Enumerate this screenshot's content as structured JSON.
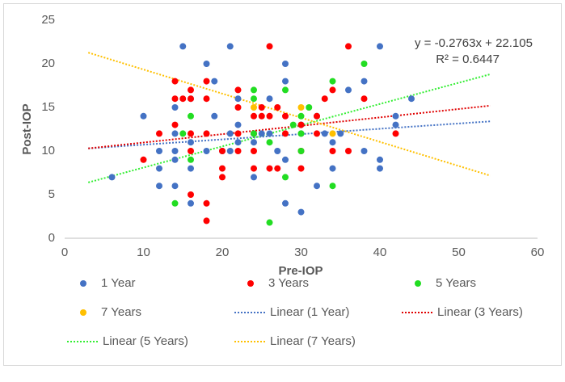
{
  "chart_data": {
    "type": "scatter",
    "xlabel": "Pre-IOP",
    "ylabel": "Post-IOP",
    "xlim": [
      0,
      60
    ],
    "xticks": [
      0,
      10,
      20,
      30,
      40,
      50,
      60
    ],
    "ylim": [
      0,
      25
    ],
    "yticks": [
      0,
      5,
      10,
      15,
      20,
      25
    ],
    "grid": false,
    "annotations": [
      "y = -0.2763x + 22.105",
      "R² = 0.6447"
    ],
    "series": [
      {
        "name": "1 Year",
        "color": "#4472c4",
        "x": [
          6,
          10,
          12,
          12,
          12,
          14,
          14,
          14,
          14,
          14,
          15,
          16,
          16,
          16,
          16,
          18,
          18,
          19,
          19,
          20,
          21,
          21,
          21,
          22,
          22,
          22,
          24,
          24,
          24,
          25,
          26,
          26,
          27,
          28,
          28,
          28,
          28,
          30,
          30,
          30,
          32,
          32,
          33,
          34,
          34,
          35,
          36,
          38,
          38,
          40,
          40,
          40,
          42,
          42,
          44
        ],
        "y": [
          7,
          14,
          10,
          8,
          6,
          15,
          12,
          10,
          9,
          6,
          22,
          16,
          11,
          8,
          4,
          20,
          10,
          18,
          14,
          10,
          22,
          12,
          10,
          16,
          13,
          11,
          12,
          7,
          11,
          12,
          16,
          12,
          10,
          20,
          18,
          9,
          4,
          13,
          12,
          3,
          14,
          6,
          12,
          11,
          8,
          12,
          17,
          18,
          10,
          22,
          9,
          8,
          14,
          13,
          16
        ]
      },
      {
        "name": "3 Years",
        "color": "#ff0000",
        "x": [
          10,
          12,
          14,
          14,
          14,
          15,
          16,
          16,
          16,
          16,
          16,
          18,
          18,
          18,
          18,
          18,
          20,
          20,
          20,
          22,
          22,
          22,
          22,
          24,
          24,
          24,
          24,
          25,
          25,
          26,
          26,
          26,
          27,
          27,
          28,
          28,
          30,
          30,
          30,
          32,
          32,
          33,
          34,
          34,
          36,
          36,
          38,
          42
        ],
        "y": [
          9,
          12,
          18,
          16,
          13,
          16,
          17,
          16,
          12,
          10,
          5,
          18,
          16,
          12,
          4,
          2,
          10,
          8,
          7,
          17,
          15,
          12,
          10,
          14,
          12,
          10,
          8,
          15,
          14,
          22,
          14,
          8,
          15,
          8,
          14,
          12,
          13,
          10,
          8,
          14,
          12,
          16,
          17,
          10,
          22,
          10,
          16,
          12
        ]
      },
      {
        "name": "5 Years",
        "color": "#22dd22",
        "x": [
          14,
          15,
          16,
          16,
          24,
          24,
          24,
          26,
          26,
          28,
          28,
          29,
          30,
          30,
          30,
          31,
          34,
          34,
          38
        ],
        "y": [
          4,
          12,
          14,
          9,
          17,
          16,
          12,
          11,
          1.8,
          17,
          7,
          13,
          14,
          12,
          10,
          15,
          18,
          6,
          20
        ]
      },
      {
        "name": "7 Years",
        "color": "#ffc000",
        "x": [
          24,
          30,
          34
        ],
        "y": [
          15,
          15,
          12
        ]
      }
    ],
    "trendlines": [
      {
        "name": "Linear (1 Year)",
        "color": "#4472c4",
        "x": [
          3,
          54
        ],
        "y": [
          10.3,
          13.4
        ]
      },
      {
        "name": "Linear (3 Years)",
        "color": "#e00000",
        "x": [
          3,
          54
        ],
        "y": [
          10.3,
          15.2
        ]
      },
      {
        "name": "Linear (5 Years)",
        "color": "#33ee33",
        "x": [
          3,
          54
        ],
        "y": [
          6.4,
          18.8
        ]
      },
      {
        "name": "Linear (7 Years)",
        "color": "#ffc000",
        "x": [
          3,
          54
        ],
        "y": [
          21.28,
          7.18
        ]
      }
    ]
  }
}
